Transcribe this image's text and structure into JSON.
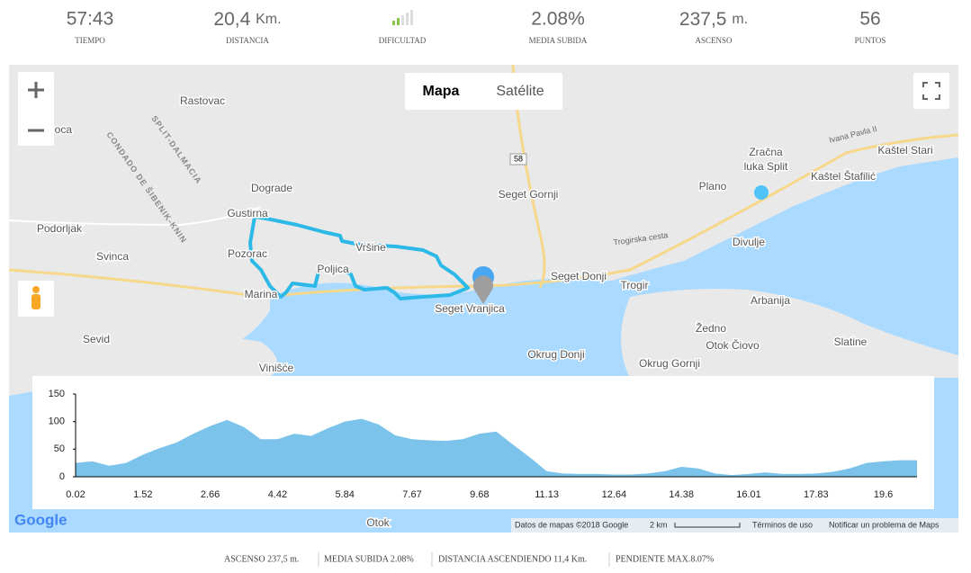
{
  "stats": [
    {
      "value": "57:43",
      "label": "TIEMPO"
    },
    {
      "value": "20,4",
      "unit": "Km.",
      "label": "DISTANCIA"
    },
    {
      "label": "DIFICULTAD"
    },
    {
      "value": "2.08%",
      "label": "MEDIA SUBIDA"
    },
    {
      "value": "237,5",
      "unit": "m.",
      "label": "ASCENSO"
    },
    {
      "value": "56",
      "label": "PUNTOS"
    }
  ],
  "map": {
    "buttons": {
      "map": "Mapa",
      "satellite": "Satélite"
    },
    "places": [
      "Rastovac",
      "Doca",
      "Dograde",
      "Gustirna",
      "Podorljak",
      "Svinca",
      "Pozorac",
      "Vršine",
      "Poljica",
      "Marina",
      "Seget Vranjica",
      "Seget Gornji",
      "Seget Donji",
      "Trogir",
      "Plano",
      "Zračna",
      "luka Split",
      "Kaštel Stari",
      "Kaštel Štafilić",
      "Divulje",
      "Arbanija",
      "Žedno",
      "Otok Čiovo",
      "Slatine",
      "Okrug Donji",
      "Okrug Gornji",
      "Sevid",
      "Vinišće",
      "Otok"
    ],
    "regions": [
      "CONDADO DE ŠIBENIK-KNIN",
      "SPLIT-DALMACIA"
    ],
    "roads": [
      "58",
      "Trogirska cesta",
      "Ivana Pavla II"
    ],
    "attribution": {
      "logo": "Google",
      "data": "Datos de mapas ©2018 Google",
      "scale": "2 km",
      "terms": "Términos de uso",
      "report": "Notificar un problema de Maps"
    }
  },
  "chart_data": {
    "type": "area",
    "categories": [
      "0.02",
      null,
      null,
      null,
      "1.52",
      null,
      null,
      null,
      "2.66",
      null,
      null,
      null,
      "4.42",
      null,
      null,
      null,
      "5.84",
      null,
      null,
      null,
      "7.67",
      null,
      null,
      null,
      "9.68",
      null,
      null,
      null,
      "11.13",
      null,
      null,
      null,
      "12.64",
      null,
      null,
      null,
      "14.38",
      null,
      null,
      null,
      "16.01",
      null,
      null,
      null,
      "17.83",
      null,
      null,
      null,
      "19.6",
      null,
      null
    ],
    "values": [
      25,
      28,
      20,
      25,
      40,
      52,
      62,
      78,
      92,
      103,
      90,
      68,
      68,
      78,
      74,
      88,
      100,
      105,
      95,
      75,
      68,
      66,
      65,
      68,
      78,
      82,
      58,
      35,
      10,
      6,
      5,
      5,
      4,
      4,
      6,
      10,
      18,
      15,
      6,
      3,
      5,
      8,
      5,
      5,
      6,
      9,
      15,
      25,
      28,
      30,
      30
    ],
    "color": "#7cc3eb",
    "ylim": [
      0,
      150
    ],
    "yticks": [
      0,
      50,
      100,
      150
    ]
  },
  "footer": [
    "ASCENSO 237,5 m.",
    "MEDIA SUBIDA 2.08%",
    "DISTANCIA ASCENDIENDO 11,4 Km.",
    "PENDIENTE MAX.8.07%"
  ]
}
